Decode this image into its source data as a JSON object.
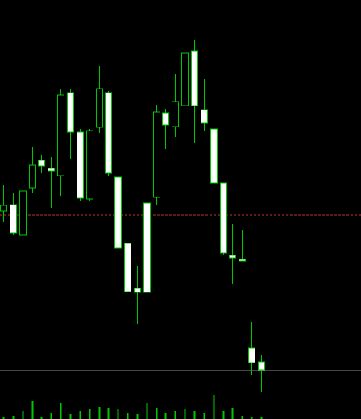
{
  "chart_data": {
    "type": "candlestick",
    "up_color": "#000000",
    "down_color": "#ffffff",
    "outline_color": "#00c800",
    "ylim": [
      0,
      520
    ],
    "open": [
      258,
      266,
      228,
      287,
      321,
      311,
      302,
      405,
      356,
      273,
      362,
      405,
      300,
      218,
      162,
      268,
      275,
      380,
      363,
      389,
      457,
      384,
      360,
      293,
      203,
      198,
      88,
      71
    ],
    "high": [
      290,
      280,
      285,
      338,
      328,
      325,
      410,
      410,
      360,
      360,
      438,
      407,
      310,
      218,
      190,
      300,
      390,
      385,
      428,
      480,
      470,
      422,
      457,
      293,
      242,
      235,
      120,
      80
    ],
    "low": [
      245,
      228,
      222,
      280,
      305,
      262,
      277,
      323,
      270,
      270,
      355,
      302,
      210,
      158,
      118,
      155,
      265,
      335,
      350,
      388,
      342,
      358,
      293,
      203,
      168,
      196,
      55,
      34
    ],
    "close": [
      265,
      231,
      283,
      315,
      314,
      308,
      402,
      356,
      274,
      358,
      410,
      305,
      212,
      158,
      157,
      157,
      381,
      365,
      394,
      454,
      389,
      367,
      293,
      206,
      200,
      196,
      70,
      61
    ],
    "volume_lim": [
      0,
      100
    ],
    "volume": [
      2,
      4,
      10,
      22,
      3,
      8,
      20,
      6,
      10,
      12,
      15,
      14,
      12,
      8,
      6,
      20,
      14,
      8,
      10,
      12,
      10,
      8,
      30,
      10,
      14,
      4,
      3,
      2
    ],
    "price_line": 253,
    "level_line": 60
  }
}
